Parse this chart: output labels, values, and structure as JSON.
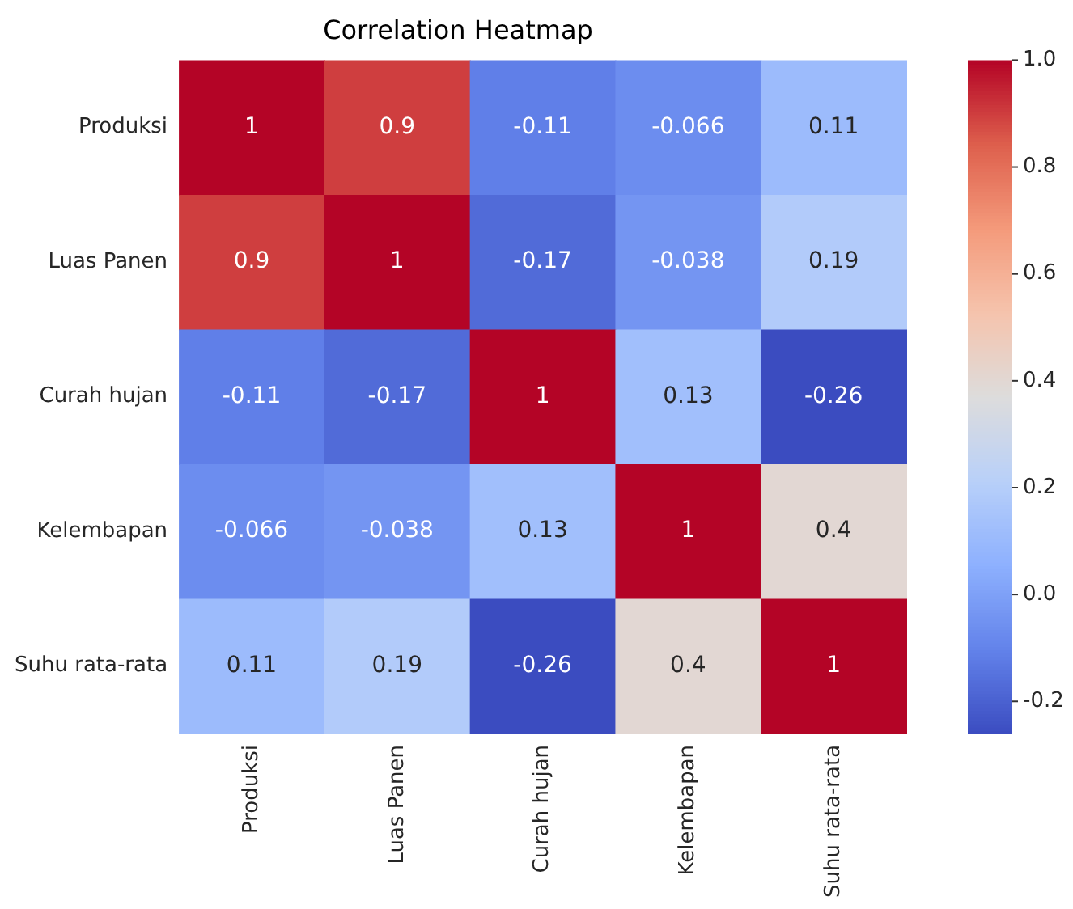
{
  "chart_data": {
    "type": "heatmap",
    "title": "Correlation Heatmap",
    "categories": [
      "Produksi",
      "Luas Panen",
      "Curah hujan",
      "Kelembapan",
      "Suhu rata-rata"
    ],
    "y_categories": [
      "Produksi",
      "Luas Panen",
      "Curah hujan",
      "Kelembapan",
      "Suhu rata-rata"
    ],
    "cells": [
      [
        1,
        0.9,
        -0.11,
        -0.066,
        0.11
      ],
      [
        0.9,
        1,
        -0.17,
        -0.038,
        0.19
      ],
      [
        -0.11,
        -0.17,
        1,
        0.13,
        -0.26
      ],
      [
        -0.066,
        -0.038,
        0.13,
        1,
        0.4
      ],
      [
        0.11,
        0.19,
        -0.26,
        0.4,
        1
      ]
    ],
    "data_labels": true,
    "clim": [
      -0.26,
      1
    ],
    "cticks": [
      -0.2,
      {
        "value": 0,
        "label": "0.0"
      },
      0.2,
      0.4,
      0.6,
      0.8,
      {
        "value": 1,
        "label": "1.0"
      }
    ]
  }
}
